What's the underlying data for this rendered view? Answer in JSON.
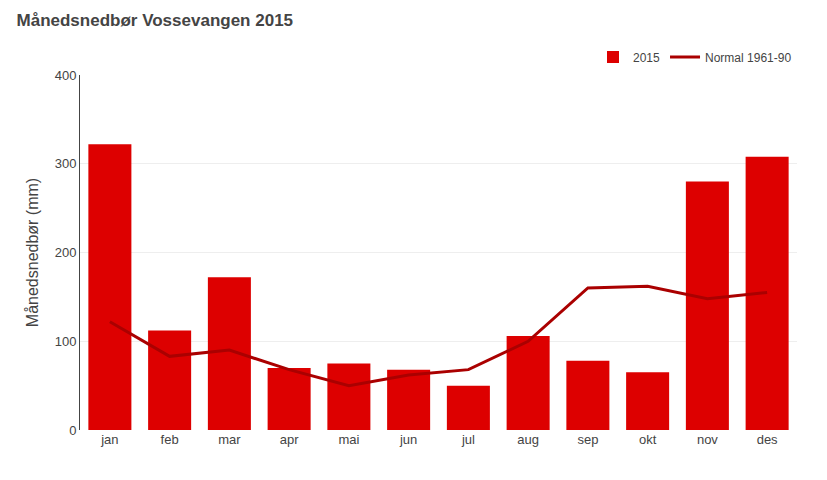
{
  "chart_data": {
    "type": "bar",
    "title": "Månedsnedbør Vossevangen 2015",
    "ylabel": "Månedsnedbør (mm)",
    "categories": [
      "jan",
      "feb",
      "mar",
      "apr",
      "mai",
      "jun",
      "jul",
      "aug",
      "sep",
      "okt",
      "nov",
      "des"
    ],
    "series": [
      {
        "name": "2015",
        "type": "bar",
        "color": "#dd0000",
        "values": [
          322,
          112,
          172,
          70,
          75,
          68,
          50,
          106,
          78,
          65,
          280,
          308
        ]
      },
      {
        "name": "Normal 1961-90",
        "type": "line",
        "color": "#aa0000",
        "values": [
          122,
          83,
          90,
          68,
          50,
          62,
          68,
          100,
          160,
          162,
          148,
          155
        ]
      }
    ],
    "ylim": [
      0,
      400
    ],
    "yticks": [
      0,
      100,
      200,
      300,
      400
    ],
    "grid": true,
    "legend": "upper right"
  }
}
